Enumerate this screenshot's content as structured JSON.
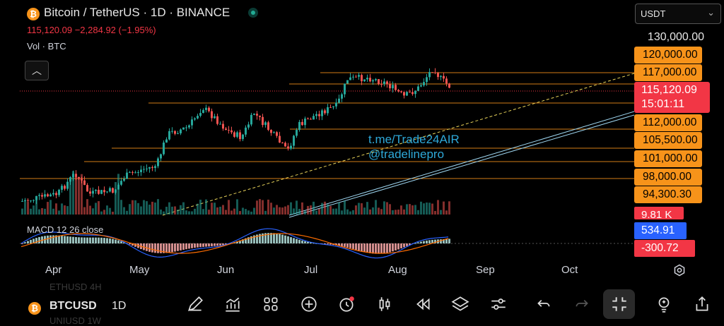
{
  "header": {
    "title": "Bitcoin / TetherUS · 1D · BINANCE",
    "price_line": "115,120.09  −2,284.92 (−1.95%)",
    "volume_label": "Vol · BTC",
    "currency": "USDT"
  },
  "price_axis": {
    "top_label": "130,000.00",
    "orange_levels": [
      "120,000.00",
      "117,000.00",
      "112,000.00",
      "105,500.00",
      "101,000.00",
      "98,000.00",
      "94,300.30"
    ],
    "last_price": "115,120.09",
    "countdown": "15:01:11",
    "volume_value": "9.81 K",
    "macd_value": "534.91",
    "signal_value": "-300.72"
  },
  "watermark": {
    "line1": "t.me/Trade24AIR",
    "line2": "@tradelinepro"
  },
  "macd": {
    "label": "MACD 12 26 close"
  },
  "time_axis": {
    "months": [
      "Apr",
      "May",
      "Jun",
      "Jul",
      "Aug",
      "Sep",
      "Oct"
    ]
  },
  "bottom_bar": {
    "symbol": "BTCUSD",
    "interval": "1D",
    "ghost_above": "ETHUSD  4H",
    "ghost_below": "UNIUSD  1W",
    "icons": [
      "pencil-icon",
      "chart-type-icon",
      "grid-icon",
      "add-icon",
      "alert-icon",
      "candles-icon",
      "replay-icon",
      "layers-icon",
      "settings-sliders-icon",
      "undo-icon",
      "redo-icon",
      "fullscreen-icon",
      "lightbulb-icon",
      "share-icon"
    ]
  },
  "colors": {
    "up": "#26a69a",
    "down": "#ef5350",
    "level": "#f7931a",
    "macd": "#2962ff",
    "signal": "#ff6d00"
  }
}
